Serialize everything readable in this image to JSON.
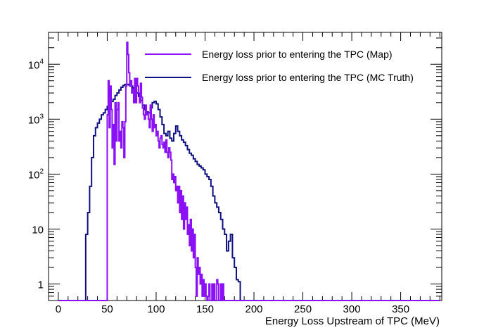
{
  "chart_data": {
    "type": "histogram",
    "title": "",
    "xlabel": "Energy Loss Upstream of TPC (MeV)",
    "ylabel": "",
    "xlim": [
      -10,
      392
    ],
    "ylim": [
      0.5,
      38000
    ],
    "yscale": "log",
    "grid": false,
    "legend_position": "top",
    "x_ticks": [
      0,
      50,
      100,
      150,
      200,
      250,
      300,
      350
    ],
    "y_ticks": [
      {
        "value": 1,
        "base": "1",
        "exp": ""
      },
      {
        "value": 10,
        "base": "10",
        "exp": ""
      },
      {
        "value": 100,
        "base": "10",
        "exp": "2"
      },
      {
        "value": 1000,
        "base": "10",
        "exp": "3"
      },
      {
        "value": 10000,
        "base": "10",
        "exp": "4"
      }
    ],
    "bin_width": 2,
    "series": [
      {
        "name": "Energy loss prior to entering the TPC (MC Truth)",
        "color": "#0f0f80",
        "bin_start": 28,
        "values": [
          8,
          20,
          60,
          200,
          500,
          700,
          850,
          1000,
          1200,
          1300,
          1500,
          1700,
          1900,
          2100,
          2300,
          2700,
          3000,
          3400,
          3800,
          4100,
          4300,
          4300,
          4200,
          4000,
          3700,
          3400,
          3000,
          2600,
          2200,
          1800,
          1500,
          1350,
          1300,
          1600,
          2000,
          2100,
          1900,
          1500,
          1100,
          800,
          550,
          500,
          600,
          450,
          400,
          550,
          750,
          600,
          500,
          420,
          380,
          330,
          280,
          240,
          220,
          190,
          170,
          150,
          140,
          130,
          120,
          100,
          90,
          80,
          60,
          40,
          30,
          25,
          20,
          15,
          10,
          8,
          4,
          6,
          8,
          3,
          2,
          1.2,
          1.1
        ]
      },
      {
        "name": "Energy loss prior to entering the TPC (Map)",
        "color": "#8a10f5",
        "points": [
          [
            50,
            0.5
          ],
          [
            50,
            1200
          ],
          [
            51,
            5000
          ],
          [
            52,
            700
          ],
          [
            53,
            4000
          ],
          [
            54,
            1500
          ],
          [
            55,
            300
          ],
          [
            56,
            800
          ],
          [
            57,
            150
          ],
          [
            58,
            2000
          ],
          [
            59,
            400
          ],
          [
            60,
            1500
          ],
          [
            61,
            2000
          ],
          [
            62,
            400
          ],
          [
            63,
            600
          ],
          [
            64,
            300
          ],
          [
            65,
            900
          ],
          [
            66,
            700
          ],
          [
            67,
            200
          ],
          [
            68,
            900
          ],
          [
            69,
            4000
          ],
          [
            70,
            25000
          ],
          [
            71,
            15000
          ],
          [
            72,
            7000
          ],
          [
            73,
            4000
          ],
          [
            74,
            5000
          ],
          [
            75,
            3000
          ],
          [
            76,
            3500
          ],
          [
            77,
            2000
          ],
          [
            78,
            5500
          ],
          [
            79,
            2000
          ],
          [
            80,
            5500
          ],
          [
            81,
            4000
          ],
          [
            82,
            3000
          ],
          [
            83,
            2000
          ],
          [
            84,
            4500
          ],
          [
            85,
            2500
          ],
          [
            86,
            1600
          ],
          [
            87,
            1200
          ],
          [
            88,
            1000
          ],
          [
            89,
            1800
          ],
          [
            90,
            1200
          ],
          [
            91,
            1300
          ],
          [
            92,
            1000
          ],
          [
            93,
            700
          ],
          [
            94,
            1800
          ],
          [
            95,
            1000
          ],
          [
            96,
            600
          ],
          [
            97,
            1200
          ],
          [
            98,
            700
          ],
          [
            99,
            800
          ],
          [
            100,
            500
          ],
          [
            101,
            600
          ],
          [
            102,
            400
          ],
          [
            103,
            300
          ],
          [
            104,
            450
          ],
          [
            105,
            500
          ],
          [
            106,
            350
          ],
          [
            107,
            300
          ],
          [
            108,
            380
          ],
          [
            109,
            250
          ],
          [
            110,
            420
          ],
          [
            111,
            250
          ],
          [
            112,
            200
          ],
          [
            113,
            300
          ],
          [
            114,
            250
          ],
          [
            115,
            180
          ],
          [
            116,
            80
          ],
          [
            117,
            100
          ],
          [
            118,
            70
          ],
          [
            119,
            90
          ],
          [
            120,
            50
          ],
          [
            121,
            60
          ],
          [
            122,
            30
          ],
          [
            123,
            60
          ],
          [
            124,
            20
          ],
          [
            125,
            50
          ],
          [
            126,
            15
          ],
          [
            127,
            40
          ],
          [
            128,
            10
          ],
          [
            129,
            30
          ],
          [
            130,
            15
          ],
          [
            131,
            25
          ],
          [
            132,
            8
          ],
          [
            133,
            12
          ],
          [
            134,
            5
          ],
          [
            135,
            15
          ],
          [
            136,
            4
          ],
          [
            137,
            10
          ],
          [
            138,
            3
          ],
          [
            139,
            8
          ],
          [
            140,
            2
          ],
          [
            141,
            0.6
          ],
          [
            142,
            3
          ],
          [
            143,
            1.5
          ],
          [
            144,
            2
          ],
          [
            145,
            1
          ],
          [
            146,
            1.5
          ],
          [
            147,
            0.6
          ],
          [
            148,
            1.2
          ],
          [
            149,
            0.6
          ],
          [
            150,
            1
          ],
          [
            151,
            0.6
          ],
          [
            152,
            0.5
          ],
          [
            153,
            0.6
          ],
          [
            154,
            1
          ],
          [
            155,
            0.5
          ],
          [
            156,
            0.5
          ],
          [
            157,
            1
          ],
          [
            158,
            0.5
          ],
          [
            159,
            1
          ],
          [
            160,
            0.5
          ],
          [
            161,
            0.5
          ],
          [
            162,
            1.2
          ],
          [
            163,
            1
          ],
          [
            164,
            0.5
          ],
          [
            165,
            0.5
          ],
          [
            166,
            1
          ],
          [
            167,
            0.5
          ],
          [
            168,
            1
          ],
          [
            169,
            0.5
          ]
        ]
      }
    ]
  }
}
